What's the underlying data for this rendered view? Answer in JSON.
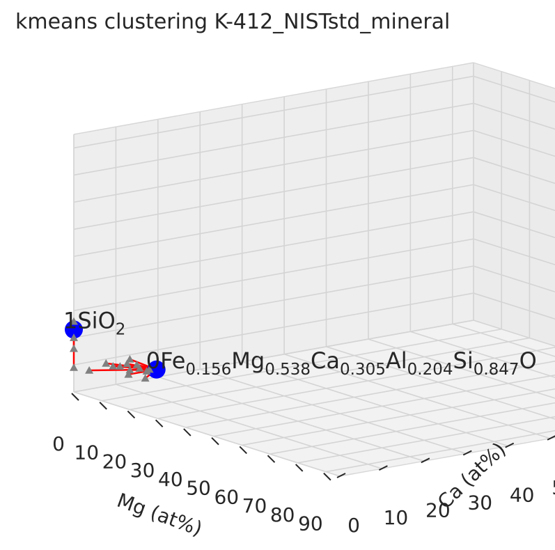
{
  "chart_data": {
    "type": "scatter",
    "projection": "3d",
    "title": "kmeans clustering K-412_NISTstd_mineral",
    "xlabel": "Mg (at%)",
    "ylabel": "Ca (at%)",
    "zlabel": "",
    "xlim": [
      0,
      95
    ],
    "ylim": [
      0,
      95
    ],
    "zlim": [
      0,
      95
    ],
    "ticks": [
      0,
      10,
      20,
      30,
      40,
      50,
      60,
      70,
      80,
      90
    ],
    "grid": true,
    "series": [
      {
        "role": "data-points",
        "marker": "triangle",
        "color": "#808080",
        "points": [
          {
            "x": 0,
            "y": 0,
            "z": 26
          },
          {
            "x": 0,
            "y": 0,
            "z": 20
          },
          {
            "x": 0,
            "y": 0,
            "z": 16
          },
          {
            "x": 0,
            "y": 0,
            "z": 9
          },
          {
            "x": 7,
            "y": 3,
            "z": 12
          },
          {
            "x": 8,
            "y": 4,
            "z": 11
          },
          {
            "x": 9,
            "y": 5,
            "z": 11
          },
          {
            "x": 10,
            "y": 6,
            "z": 12
          },
          {
            "x": 11,
            "y": 6,
            "z": 10
          },
          {
            "x": 11,
            "y": 6,
            "z": 14
          },
          {
            "x": 12,
            "y": 7,
            "z": 12
          },
          {
            "x": 12,
            "y": 5,
            "z": 9
          },
          {
            "x": 13,
            "y": 7,
            "z": 11
          },
          {
            "x": 14,
            "y": 8,
            "z": 10
          },
          {
            "x": 15,
            "y": 8,
            "z": 11
          },
          {
            "x": 15,
            "y": 7,
            "z": 8
          },
          {
            "x": 4,
            "y": 1,
            "z": 9
          }
        ]
      },
      {
        "role": "cluster-centroids",
        "marker": "circle",
        "color": "#0000ff",
        "points": [
          {
            "id": "0",
            "x": 16,
            "y": 9,
            "z": 11
          },
          {
            "id": "1",
            "x": 0,
            "y": 0,
            "z": 23
          }
        ]
      }
    ],
    "annotations": [
      {
        "id": "0",
        "text": "0Fe0.156Mg0.538Ca0.305Al0.204Si0.847O",
        "parts": [
          [
            "0Fe",
            ""
          ],
          [
            "0.156",
            "sub"
          ],
          [
            "Mg",
            ""
          ],
          [
            "0.538",
            "sub"
          ],
          [
            "Ca",
            ""
          ],
          [
            "0.305",
            "sub"
          ],
          [
            "Al",
            ""
          ],
          [
            "0.204",
            "sub"
          ],
          [
            "Si",
            ""
          ],
          [
            "0.847",
            "sub"
          ],
          [
            "O",
            ""
          ]
        ]
      },
      {
        "id": "1",
        "text": "1SiO2",
        "parts": [
          [
            "1SiO",
            ""
          ],
          [
            "2",
            "sub"
          ]
        ]
      }
    ],
    "colors": {
      "pane": "#f2f2f2",
      "grid": "#d4d4d4",
      "tick": "#262626",
      "centroid": "#0000ff",
      "points": "#808080",
      "link": "#ff0000"
    }
  }
}
